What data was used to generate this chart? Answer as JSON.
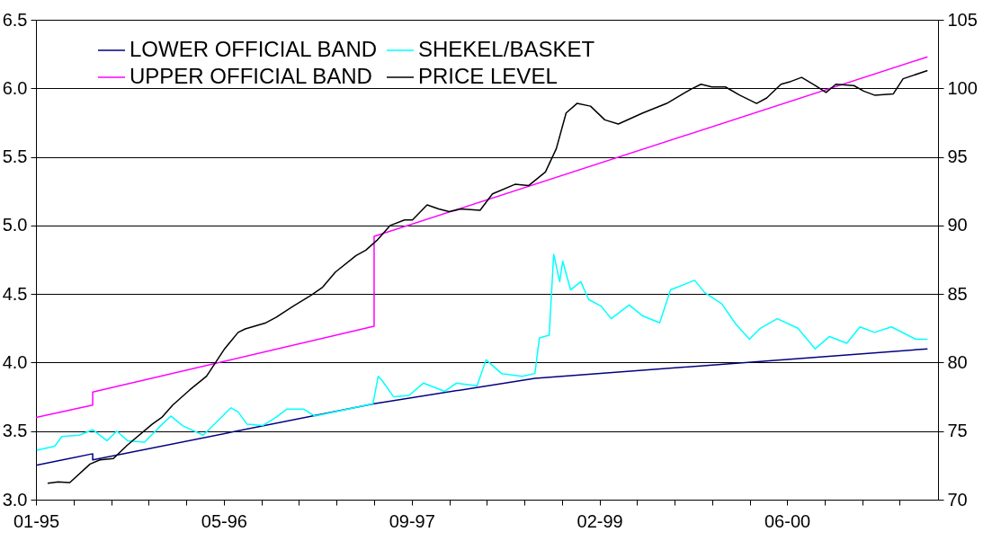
{
  "chart_data": {
    "type": "line",
    "xlim": [
      "1995-01-01",
      "2001-07-29"
    ],
    "xticks": [
      {
        "value": "1995-01-01",
        "label": "01-95"
      },
      {
        "value": "1995-04-11",
        "label": null
      },
      {
        "value": "1995-07-20",
        "label": null
      },
      {
        "value": "1995-10-28",
        "label": null
      },
      {
        "value": "1996-02-05",
        "label": null
      },
      {
        "value": "1996-05-15",
        "label": "05-96"
      },
      {
        "value": "1996-08-23",
        "label": null
      },
      {
        "value": "1996-12-01",
        "label": null
      },
      {
        "value": "1997-03-11",
        "label": null
      },
      {
        "value": "1997-06-19",
        "label": null
      },
      {
        "value": "1997-09-27",
        "label": "09-97"
      },
      {
        "value": "1998-01-05",
        "label": null
      },
      {
        "value": "1998-04-15",
        "label": null
      },
      {
        "value": "1998-07-24",
        "label": null
      },
      {
        "value": "1998-11-01",
        "label": null
      },
      {
        "value": "1999-02-09",
        "label": "02-99"
      },
      {
        "value": "1999-05-20",
        "label": null
      },
      {
        "value": "1999-08-28",
        "label": null
      },
      {
        "value": "1999-12-06",
        "label": null
      },
      {
        "value": "2000-03-15",
        "label": null
      },
      {
        "value": "2000-06-22",
        "label": "06-00"
      },
      {
        "value": "2000-09-30",
        "label": null
      },
      {
        "value": "2001-01-08",
        "label": null
      },
      {
        "value": "2001-04-18",
        "label": null
      }
    ],
    "ylim": [
      3.0,
      6.5
    ],
    "yticks": [
      {
        "value": 3,
        "label": "3.0"
      },
      3.5,
      {
        "value": 4,
        "label": "4.0"
      },
      4.5,
      {
        "value": 5,
        "label": "5.0"
      },
      5.5,
      {
        "value": 6,
        "label": "6.0"
      },
      6.5
    ],
    "y2lim": [
      70,
      105
    ],
    "y2ticks": [
      70,
      75,
      80,
      85,
      90,
      95,
      100,
      105
    ],
    "grid": "y",
    "legend": "top left",
    "line_style": "solid",
    "marker": "none",
    "series": [
      {
        "name": "LOWER OFFICIAL BAND",
        "color": "#000080",
        "x": [
          "1995-01-01",
          "1995-06-01",
          "1995-06-01",
          "1997-06-19",
          "1998-08-21",
          "2001-07-01"
        ],
        "values": [
          3.25,
          3.335,
          3.29,
          3.7,
          3.885,
          4.1
        ]
      },
      {
        "name": "UPPER OFFICIAL BAND",
        "color": "#ff00ff",
        "x": [
          "1995-01-01",
          "1995-06-01",
          "1995-06-01",
          "1997-06-19",
          "1997-06-19",
          "2001-07-01"
        ],
        "values": [
          3.6,
          3.69,
          3.785,
          4.265,
          4.92,
          6.23
        ]
      },
      {
        "name": "SHEKEL/BASKET",
        "color": "#00ffff",
        "x": [
          "1995-01-03",
          "1995-02-20",
          "1995-03-11",
          "1995-04-26",
          "1995-06-01",
          "1995-07-09",
          "1995-08-04",
          "1995-09-02",
          "1995-10-17",
          "1995-11-22",
          "1995-12-26",
          "1996-01-26",
          "1996-03-21",
          "1996-05-08",
          "1996-06-03",
          "1996-06-22",
          "1996-07-16",
          "1996-08-26",
          "1996-10-01",
          "1996-10-29",
          "1996-12-14",
          "1997-01-12",
          "1997-06-16",
          "1997-06-30",
          "1997-07-10",
          "1997-08-10",
          "1997-09-20",
          "1997-10-28",
          "1997-12-24",
          "1998-01-24",
          "1998-03-20",
          "1998-04-13",
          "1998-05-24",
          "1998-07-18",
          "1998-08-21",
          "1998-09-02",
          "1998-09-28",
          "1998-10-10",
          "1998-10-26",
          "1998-11-03",
          "1998-11-24",
          "1998-12-21",
          "1999-01-11",
          "1999-02-14",
          "1999-03-12",
          "1999-04-29",
          "1999-06-04",
          "1999-07-19",
          "1999-08-17",
          "1999-10-20",
          "1999-11-16",
          "1999-12-31",
          "2000-02-07",
          "2000-03-14",
          "2000-04-12",
          "2000-05-27",
          "2000-07-21",
          "2000-09-05",
          "2000-10-13",
          "2000-11-28",
          "2001-01-02",
          "2001-02-10",
          "2001-03-27",
          "2001-05-31",
          "2001-07-01"
        ],
        "values": [
          3.36,
          3.39,
          3.46,
          3.47,
          3.51,
          3.43,
          3.5,
          3.43,
          3.42,
          3.52,
          3.61,
          3.54,
          3.47,
          3.6,
          3.67,
          3.64,
          3.55,
          3.54,
          3.6,
          3.66,
          3.66,
          3.61,
          3.7,
          3.9,
          3.87,
          3.75,
          3.76,
          3.85,
          3.79,
          3.85,
          3.83,
          4.02,
          3.92,
          3.9,
          3.92,
          4.18,
          4.2,
          4.79,
          4.59,
          4.74,
          4.53,
          4.59,
          4.46,
          4.41,
          4.32,
          4.42,
          4.34,
          4.29,
          4.53,
          4.6,
          4.51,
          4.43,
          4.28,
          4.17,
          4.25,
          4.32,
          4.25,
          4.1,
          4.19,
          4.14,
          4.26,
          4.22,
          4.26,
          4.17,
          4.17
        ]
      },
      {
        "name": "PRICE LEVEL",
        "color": "#000000",
        "axis": "y2",
        "x": [
          "1995-02-01",
          "1995-03-01",
          "1995-04-01",
          "1995-05-25",
          "1995-06-20",
          "1995-07-26",
          "1995-09-02",
          "1995-11-06",
          "1995-12-02",
          "1995-12-31",
          "1996-02-14",
          "1996-03-30",
          "1996-05-17",
          "1996-06-22",
          "1996-07-11",
          "1996-09-04",
          "1996-10-01",
          "1996-11-15",
          "1997-01-02",
          "1997-02-02",
          "1997-03-08",
          "1997-05-02",
          "1997-05-28",
          "1997-06-26",
          "1997-08-01",
          "1997-09-08",
          "1997-09-29",
          "1997-11-07",
          "1997-12-08",
          "1998-01-05",
          "1998-02-05",
          "1998-03-28",
          "1998-04-30",
          "1998-06-29",
          "1998-08-04",
          "1998-09-18",
          "1998-10-17",
          "1998-11-12",
          "1998-12-11",
          "1999-01-16",
          "1999-02-23",
          "1999-03-31",
          "1999-06-04",
          "1999-08-07",
          "1999-10-11",
          "1999-11-06",
          "1999-12-05",
          "2000-01-10",
          "2000-02-17",
          "2000-04-02",
          "2000-04-29",
          "2000-06-06",
          "2000-07-02",
          "2000-07-31",
          "2000-09-05",
          "2000-10-04",
          "2000-10-30",
          "2000-12-17",
          "2001-01-12",
          "2001-02-10",
          "2001-04-01",
          "2001-04-27",
          "2001-07-01"
        ],
        "values": [
          71.2,
          71.3,
          71.25,
          72.6,
          72.9,
          73.0,
          74.0,
          75.5,
          76.0,
          76.9,
          78.0,
          79.0,
          81.0,
          82.2,
          82.45,
          82.9,
          83.3,
          84.1,
          84.9,
          85.5,
          86.6,
          87.8,
          88.2,
          88.9,
          90.0,
          90.4,
          90.4,
          91.5,
          91.2,
          91.0,
          91.2,
          91.1,
          92.3,
          93.0,
          92.9,
          93.9,
          95.6,
          98.2,
          98.9,
          98.7,
          97.7,
          97.4,
          98.2,
          98.9,
          99.95,
          100.3,
          100.1,
          100.1,
          99.5,
          98.9,
          99.3,
          100.3,
          100.5,
          100.8,
          100.2,
          99.7,
          100.3,
          100.2,
          99.8,
          99.5,
          99.6,
          100.7,
          101.3
        ]
      }
    ]
  }
}
